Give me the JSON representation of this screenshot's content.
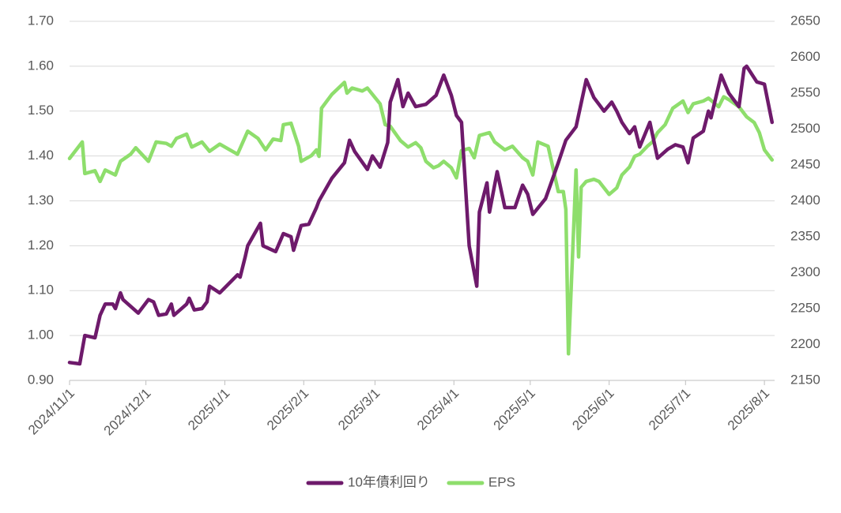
{
  "chart_data": {
    "type": "line",
    "xlim": [
      "2024/11/1",
      "2025/8/5"
    ],
    "xticks": [
      "2024/11/1",
      "2024/12/1",
      "2025/1/1",
      "2025/2/1",
      "2025/3/1",
      "2025/4/1",
      "2025/5/1",
      "2025/6/1",
      "2025/7/1",
      "2025/8/1"
    ],
    "ylim": [
      0.9,
      1.7
    ],
    "yticks": [
      {
        "value": 0.9,
        "label": "0.90"
      },
      {
        "value": 1.0,
        "label": "1.00"
      },
      {
        "value": 1.1,
        "label": "1.10"
      },
      {
        "value": 1.2,
        "label": "1.20"
      },
      {
        "value": 1.3,
        "label": "1.30"
      },
      {
        "value": 1.4,
        "label": "1.40"
      },
      {
        "value": 1.5,
        "label": "1.50"
      },
      {
        "value": 1.6,
        "label": "1.60"
      },
      {
        "value": 1.7,
        "label": "1.70"
      }
    ],
    "y2lim": [
      2150,
      2650
    ],
    "y2ticks": [
      2150,
      2200,
      2250,
      2300,
      2350,
      2400,
      2450,
      2500,
      2550,
      2600,
      2650
    ],
    "grid": true,
    "legend": "bottom",
    "series": [
      {
        "name": "10年債利回り",
        "color": "#6e1a6b",
        "x": [
          "2024/11/1",
          "2024/11/5",
          "2024/11/7",
          "2024/11/11",
          "2024/11/13",
          "2024/11/15",
          "2024/11/18",
          "2024/11/19",
          "2024/11/21",
          "2024/11/22",
          "2024/11/25",
          "2024/11/28",
          "2024/12/2",
          "2024/12/4",
          "2024/12/6",
          "2024/12/9",
          "2024/12/11",
          "2024/12/12",
          "2024/12/17",
          "2024/12/18",
          "2024/12/20",
          "2024/12/23",
          "2024/12/25",
          "2024/12/26",
          "2024/12/30",
          "2025/1/6",
          "2025/1/7",
          "2025/1/9",
          "2025/1/10",
          "2025/1/15",
          "2025/1/16",
          "2025/1/21",
          "2025/1/24",
          "2025/1/27",
          "2025/1/28",
          "2025/1/31",
          "2025/2/3",
          "2025/2/6",
          "2025/2/7",
          "2025/2/12",
          "2025/2/17",
          "2025/2/19",
          "2025/2/21",
          "2025/2/26",
          "2025/2/28",
          "2025/3/3",
          "2025/3/6",
          "2025/3/7",
          "2025/3/10",
          "2025/3/12",
          "2025/3/14",
          "2025/3/17",
          "2025/3/21",
          "2025/3/25",
          "2025/3/28",
          "2025/3/31",
          "2025/4/2",
          "2025/4/4",
          "2025/4/7",
          "2025/4/10",
          "2025/4/11",
          "2025/4/14",
          "2025/4/15",
          "2025/4/18",
          "2025/4/21",
          "2025/4/25",
          "2025/4/28",
          "2025/4/30",
          "2025/5/2",
          "2025/5/7",
          "2025/5/12",
          "2025/5/15",
          "2025/5/19",
          "2025/5/23",
          "2025/5/26",
          "2025/5/28",
          "2025/5/30",
          "2025/6/2",
          "2025/6/4",
          "2025/6/6",
          "2025/6/9",
          "2025/6/11",
          "2025/6/13",
          "2025/6/17",
          "2025/6/20",
          "2025/6/24",
          "2025/6/27",
          "2025/6/30",
          "2025/7/2",
          "2025/7/4",
          "2025/7/8",
          "2025/7/10",
          "2025/7/11",
          "2025/7/15",
          "2025/7/18",
          "2025/7/22",
          "2025/7/24",
          "2025/7/25",
          "2025/7/29",
          "2025/8/1",
          "2025/8/4"
        ],
        "values": [
          0.94,
          0.937,
          1.0,
          0.995,
          1.045,
          1.07,
          1.07,
          1.06,
          1.095,
          1.08,
          1.065,
          1.05,
          1.08,
          1.075,
          1.045,
          1.048,
          1.07,
          1.045,
          1.07,
          1.083,
          1.057,
          1.06,
          1.075,
          1.11,
          1.095,
          1.135,
          1.13,
          1.175,
          1.2,
          1.25,
          1.2,
          1.187,
          1.227,
          1.22,
          1.19,
          1.245,
          1.248,
          1.285,
          1.3,
          1.35,
          1.385,
          1.435,
          1.41,
          1.37,
          1.4,
          1.375,
          1.43,
          1.52,
          1.57,
          1.51,
          1.54,
          1.51,
          1.515,
          1.535,
          1.58,
          1.535,
          1.49,
          1.475,
          1.2,
          1.11,
          1.275,
          1.34,
          1.275,
          1.365,
          1.285,
          1.285,
          1.335,
          1.315,
          1.27,
          1.305,
          1.385,
          1.435,
          1.465,
          1.57,
          1.53,
          1.515,
          1.5,
          1.52,
          1.5,
          1.475,
          1.45,
          1.465,
          1.42,
          1.475,
          1.395,
          1.415,
          1.425,
          1.42,
          1.385,
          1.44,
          1.455,
          1.5,
          1.485,
          1.58,
          1.54,
          1.51,
          1.595,
          1.6,
          1.565,
          1.56,
          1.475
        ]
      },
      {
        "name": "EPS",
        "color": "#8ede6c",
        "axis": "y2",
        "x": [
          "2024/11/1",
          "2024/11/6",
          "2024/11/7",
          "2024/11/11",
          "2024/11/13",
          "2024/11/15",
          "2024/11/19",
          "2024/11/21",
          "2024/11/25",
          "2024/11/27",
          "2024/12/2",
          "2024/12/5",
          "2024/12/9",
          "2024/12/11",
          "2024/12/13",
          "2024/12/17",
          "2024/12/19",
          "2024/12/23",
          "2024/12/26",
          "2024/12/30",
          "2025/1/6",
          "2025/1/10",
          "2025/1/14",
          "2025/1/17",
          "2025/1/20",
          "2025/1/23",
          "2025/1/24",
          "2025/1/27",
          "2025/1/30",
          "2025/1/31",
          "2025/2/4",
          "2025/2/6",
          "2025/2/7",
          "2025/2/8",
          "2025/2/12",
          "2025/2/17",
          "2025/2/18",
          "2025/2/20",
          "2025/2/24",
          "2025/2/26",
          "2025/3/3",
          "2025/3/5",
          "2025/3/7",
          "2025/3/11",
          "2025/3/14",
          "2025/3/17",
          "2025/3/19",
          "2025/3/21",
          "2025/3/24",
          "2025/3/26",
          "2025/3/28",
          "2025/3/31",
          "2025/4/2",
          "2025/4/4",
          "2025/4/7",
          "2025/4/9",
          "2025/4/11",
          "2025/4/15",
          "2025/4/17",
          "2025/4/21",
          "2025/4/24",
          "2025/4/28",
          "2025/4/30",
          "2025/5/2",
          "2025/5/4",
          "2025/5/8",
          "2025/5/12",
          "2025/5/14",
          "2025/5/15",
          "2025/5/16",
          "2025/5/19",
          "2025/5/20",
          "2025/5/21",
          "2025/5/23",
          "2025/5/26",
          "2025/5/28",
          "2025/6/1",
          "2025/6/4",
          "2025/6/6",
          "2025/6/9",
          "2025/6/11",
          "2025/6/13",
          "2025/6/16",
          "2025/6/18",
          "2025/6/20",
          "2025/6/23",
          "2025/6/26",
          "2025/6/30",
          "2025/7/2",
          "2025/7/4",
          "2025/7/8",
          "2025/7/10",
          "2025/7/14",
          "2025/7/16",
          "2025/7/18",
          "2025/7/22",
          "2025/7/25",
          "2025/7/28",
          "2025/7/30",
          "2025/8/1",
          "2025/8/4"
        ],
        "values": [
          2459,
          2482,
          2438,
          2442,
          2427,
          2443,
          2436,
          2455,
          2465,
          2474,
          2455,
          2482,
          2480,
          2476,
          2487,
          2493,
          2475,
          2482,
          2469,
          2479,
          2465,
          2497,
          2487,
          2471,
          2486,
          2484,
          2506,
          2508,
          2476,
          2455,
          2463,
          2471,
          2462,
          2529,
          2548,
          2565,
          2550,
          2557,
          2553,
          2557,
          2535,
          2506,
          2504,
          2484,
          2475,
          2481,
          2474,
          2455,
          2446,
          2449,
          2455,
          2446,
          2432,
          2470,
          2473,
          2460,
          2491,
          2495,
          2482,
          2471,
          2476,
          2460,
          2455,
          2436,
          2482,
          2476,
          2413,
          2413,
          2388,
          2187,
          2443,
          2322,
          2419,
          2427,
          2430,
          2427,
          2409,
          2418,
          2436,
          2447,
          2462,
          2465,
          2476,
          2482,
          2495,
          2506,
          2529,
          2539,
          2523,
          2535,
          2539,
          2543,
          2531,
          2545,
          2541,
          2531,
          2517,
          2509,
          2495,
          2471,
          2457
        ]
      }
    ]
  }
}
